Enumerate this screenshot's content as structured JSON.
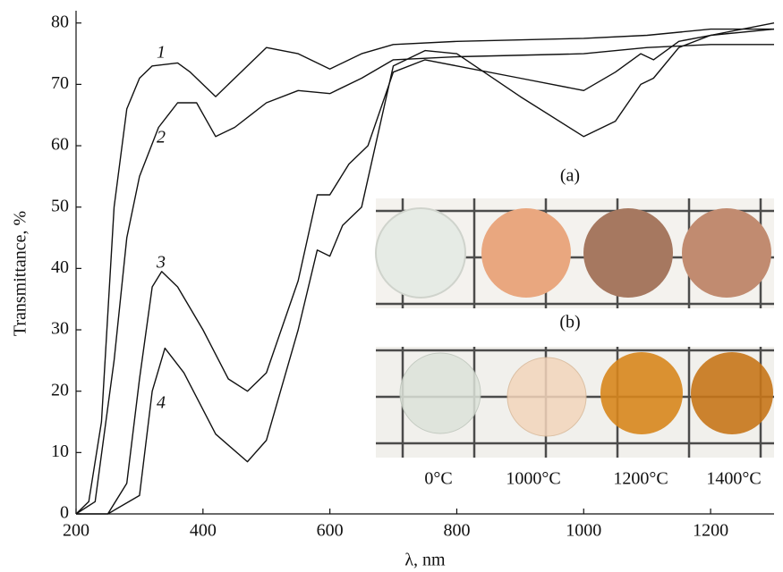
{
  "chart_data": {
    "type": "line",
    "x_label": "λ, nm",
    "y_label": "Transmittance, %",
    "xlim": [
      200,
      1300
    ],
    "ylim": [
      0,
      82
    ],
    "xticks": [
      200,
      400,
      600,
      800,
      1000,
      1200
    ],
    "yticks": [
      0,
      10,
      20,
      30,
      40,
      50,
      60,
      70,
      80
    ],
    "grid": false,
    "series": [
      {
        "name": "1",
        "color": "#111111",
        "x": [
          200,
          220,
          240,
          260,
          280,
          300,
          320,
          360,
          380,
          420,
          450,
          500,
          550,
          600,
          650,
          700,
          800,
          1000,
          1100,
          1200,
          1300
        ],
        "values": [
          0,
          2,
          15,
          50,
          66,
          71,
          73,
          73.5,
          72,
          68,
          71,
          76,
          75,
          72.5,
          75,
          76.5,
          77,
          77.5,
          78,
          79,
          79
        ]
      },
      {
        "name": "2",
        "color": "#111111",
        "x": [
          200,
          230,
          260,
          280,
          300,
          330,
          360,
          390,
          420,
          450,
          500,
          550,
          600,
          650,
          700,
          800,
          1000,
          1100,
          1200,
          1300
        ],
        "values": [
          0,
          2,
          25,
          45,
          55,
          63,
          67,
          67,
          61.5,
          63,
          67,
          69,
          68.5,
          71,
          74,
          74.5,
          75,
          76,
          76.5,
          76.5
        ]
      },
      {
        "name": "3",
        "color": "#111111",
        "x": [
          200,
          250,
          280,
          300,
          320,
          335,
          360,
          400,
          440,
          470,
          500,
          550,
          580,
          600,
          630,
          660,
          700,
          750,
          800,
          900,
          1000,
          1050,
          1090,
          1110,
          1150,
          1200,
          1300
        ],
        "values": [
          0,
          0,
          5,
          22,
          37,
          39.5,
          37,
          30,
          22,
          20,
          23,
          38,
          52,
          52,
          57,
          60,
          72,
          74,
          73,
          71,
          69,
          72,
          75,
          74,
          77,
          78,
          79
        ]
      },
      {
        "name": "4",
        "color": "#111111",
        "x": [
          250,
          300,
          320,
          340,
          370,
          420,
          470,
          500,
          550,
          580,
          600,
          620,
          650,
          700,
          750,
          800,
          900,
          1000,
          1050,
          1090,
          1110,
          1150,
          1200,
          1300
        ],
        "values": [
          0,
          3,
          20,
          27,
          23,
          13,
          8.5,
          12,
          30,
          43,
          42,
          47,
          50,
          73,
          75.5,
          75,
          68,
          61.5,
          64,
          70,
          71,
          76,
          78,
          80
        ]
      }
    ],
    "inset": {
      "panel_a": "(a)",
      "panel_b": "(b)",
      "temperatures": [
        "0°C",
        "1000°C",
        "1200°C",
        "1400°C"
      ]
    }
  }
}
